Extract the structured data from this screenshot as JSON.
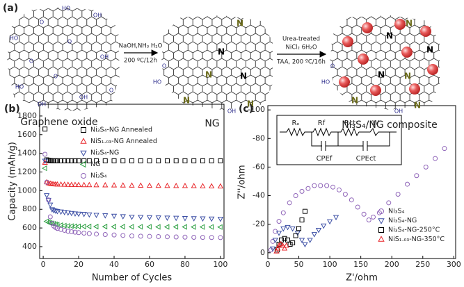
{
  "diagram": {
    "panel_label": "(a)",
    "structures": [
      {
        "name": "Graphene oxide",
        "atoms": [
          "HO",
          "OH",
          "O",
          "HO",
          "O",
          "O",
          "OH",
          "O",
          "HO",
          "OH",
          "O",
          "OH"
        ]
      },
      {
        "name": "NG",
        "atoms": [
          "N",
          "N",
          "N",
          "N",
          "N",
          "N",
          "HO",
          "O",
          "OH"
        ]
      },
      {
        "name": "Ni₃S₄/NG composite",
        "atoms": [
          "N",
          "N",
          "N",
          "N",
          "N",
          "N",
          "N",
          "HO",
          "O",
          "OH"
        ]
      }
    ],
    "arrows": [
      {
        "above": [
          "NaOH,NH₃ H₂O"
        ],
        "below": [
          "200 ºC/12h"
        ]
      },
      {
        "above": [
          "Urea-treated",
          "NiCl₂ 6H₂O"
        ],
        "below": [
          "TAA, 200 ºC/16h"
        ]
      }
    ]
  },
  "chart_data": [
    {
      "type": "scatter",
      "panel_label": "(b)",
      "x_label": "Number of Cycles",
      "y_label": "Capacity (mAh/g)",
      "xlim": [
        -2,
        102
      ],
      "xticks": [
        0,
        20,
        40,
        60,
        80,
        100
      ],
      "ylim": [
        273,
        1926
      ],
      "yticks": [
        400,
        600,
        800,
        1000,
        1200,
        1400,
        1600,
        1800
      ],
      "x": [
        1,
        2,
        3,
        4,
        5,
        6,
        7,
        8,
        10,
        12,
        14,
        16,
        18,
        20,
        23,
        26,
        30,
        35,
        40,
        45,
        50,
        55,
        60,
        65,
        70,
        75,
        80,
        85,
        90,
        95,
        100
      ],
      "series": [
        {
          "name": "Ni₃S₄-NG Annealed",
          "color": "#000000",
          "marker": "square",
          "values": [
            1660,
            1330,
            1325,
            1322,
            1320,
            1320,
            1320,
            1320,
            1320,
            1320,
            1320,
            1320,
            1320,
            1320,
            1320,
            1320,
            1320,
            1320,
            1320,
            1320,
            1320,
            1320,
            1320,
            1320,
            1320,
            1320,
            1320,
            1320,
            1320,
            1320,
            1320
          ]
        },
        {
          "name": "NiS₁.₀₃-NG Annealed",
          "color": "#e8262a",
          "marker": "triangle-up",
          "values": [
            1300,
            1090,
            1080,
            1075,
            1072,
            1070,
            1068,
            1066,
            1065,
            1064,
            1063,
            1062,
            1062,
            1061,
            1060,
            1060,
            1059,
            1058,
            1057,
            1056,
            1055,
            1054,
            1053,
            1052,
            1051,
            1050,
            1050,
            1049,
            1048,
            1047,
            1046
          ]
        },
        {
          "name": "Ni₃S₄-NG",
          "color": "#3c4fa5",
          "marker": "triangle-down",
          "values": [
            1320,
            950,
            900,
            850,
            800,
            790,
            785,
            780,
            775,
            770,
            765,
            760,
            755,
            752,
            750,
            745,
            740,
            735,
            730,
            725,
            720,
            718,
            715,
            712,
            710,
            708,
            706,
            704,
            702,
            700,
            698
          ]
        },
        {
          "name": "NG",
          "color": "#2ea043",
          "marker": "triangle-left",
          "values": [
            1240,
            670,
            660,
            655,
            650,
            645,
            640,
            635,
            630,
            625,
            622,
            620,
            618,
            617,
            616,
            616,
            615,
            615,
            614,
            614,
            613,
            613,
            613,
            612,
            612,
            612,
            612,
            611,
            611,
            611,
            610
          ]
        },
        {
          "name": "Ni₃S₄",
          "color": "#8e63b8",
          "marker": "circle",
          "values": [
            1390,
            1090,
            900,
            720,
            650,
            620,
            605,
            595,
            585,
            575,
            565,
            560,
            555,
            550,
            545,
            540,
            535,
            530,
            525,
            520,
            515,
            512,
            510,
            508,
            506,
            504,
            502,
            500,
            499,
            498,
            497
          ]
        }
      ]
    },
    {
      "type": "scatter",
      "panel_label": "(c)",
      "x_label": "Z'/ohm",
      "y_label": "Z''/ohm",
      "xlim": [
        0,
        303
      ],
      "xticks": [
        0,
        50,
        100,
        150,
        200,
        250,
        300
      ],
      "ylim": [
        4,
        -103
      ],
      "yticks": [
        -100,
        -80,
        -60,
        -40,
        -20,
        0
      ],
      "annotations": [
        "Rₑ",
        "Rf",
        "Rct",
        "W",
        "CPEf",
        "CPEct"
      ],
      "series": [
        {
          "name": "Ni₃S₄",
          "color": "#8e63b8",
          "marker": "circle",
          "x": [
            5,
            8,
            12,
            18,
            25,
            35,
            45,
            55,
            65,
            75,
            85,
            95,
            105,
            115,
            125,
            135,
            145,
            155,
            163,
            170,
            180,
            195,
            210,
            225,
            240,
            255,
            270,
            285
          ],
          "values": [
            -2,
            -8,
            -15,
            -22,
            -28,
            -35,
            -40,
            -43,
            -45,
            -47,
            -47,
            -47,
            -46,
            -44,
            -41,
            -37,
            -32,
            -27,
            -23,
            -25,
            -28,
            -35,
            -41,
            -48,
            -54,
            -60,
            -66,
            -73
          ]
        },
        {
          "name": "Ni₃S₄-NG",
          "color": "#3c4fa5",
          "marker": "triangle-down",
          "x": [
            8,
            12,
            18,
            25,
            32,
            40,
            48,
            55,
            60,
            68,
            75,
            82,
            90,
            100,
            110
          ],
          "values": [
            -3,
            -9,
            -14,
            -17,
            -18,
            -17,
            -14,
            -9,
            -6,
            -9,
            -13,
            -16,
            -19,
            -22,
            -25
          ]
        },
        {
          "name": "Ni₃S₄-NG-250°C",
          "color": "#000000",
          "marker": "square",
          "x": [
            15,
            18,
            22,
            27,
            32,
            36,
            40,
            45,
            50,
            55,
            60
          ],
          "values": [
            -2,
            -6,
            -9,
            -10,
            -9,
            -6,
            -7,
            -12,
            -17,
            -23,
            -29
          ]
        },
        {
          "name": "NiS₁.₀₃-NG-350°C",
          "color": "#e8262a",
          "marker": "triangle-up",
          "x": [
            14,
            16,
            18,
            21,
            24,
            27,
            30
          ],
          "values": [
            -1,
            -3,
            -5,
            -6,
            -5,
            -3,
            -5
          ]
        }
      ]
    }
  ]
}
